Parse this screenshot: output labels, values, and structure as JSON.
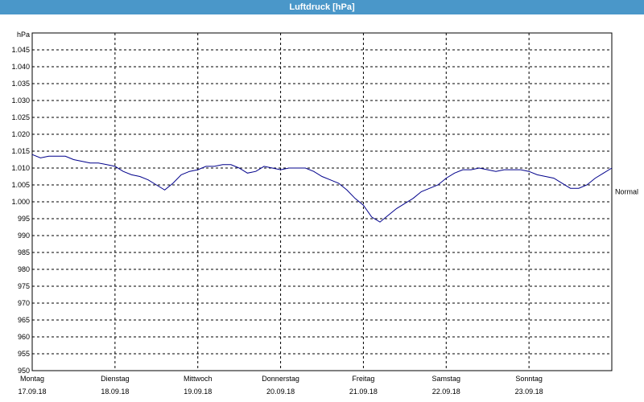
{
  "window": {
    "title": "Luftdruck [hPa]"
  },
  "chart_data": {
    "type": "line",
    "title": "Luftdruck [hPa]",
    "ylabel": "hPa",
    "xlabel": "",
    "ylim": [
      950,
      1050
    ],
    "y_ticks": [
      "950",
      "955",
      "960",
      "965",
      "970",
      "975",
      "980",
      "985",
      "990",
      "995",
      "1.000",
      "1.005",
      "1.010",
      "1.015",
      "1.020",
      "1.025",
      "1.030",
      "1.035",
      "1.040",
      "1.045"
    ],
    "x_ticks": [
      {
        "day": "Montag",
        "date": "17.09.18"
      },
      {
        "day": "Dienstag",
        "date": "18.09.18"
      },
      {
        "day": "Mittwoch",
        "date": "19.09.18"
      },
      {
        "day": "Donnerstag",
        "date": "20.09.18"
      },
      {
        "day": "Freitag",
        "date": "21.09.18"
      },
      {
        "day": "Samstag",
        "date": "22.09.18"
      },
      {
        "day": "Sonntag",
        "date": "23.09.18"
      }
    ],
    "xlim_days": [
      0,
      7
    ],
    "grid": true,
    "reference_line": {
      "label": "Normal",
      "value": 1003
    },
    "line_color": "#00008b",
    "series": [
      {
        "x": [
          0,
          0.1,
          0.2,
          0.3,
          0.4,
          0.5,
          0.6,
          0.7,
          0.8,
          0.9,
          1.0,
          1.1,
          1.2,
          1.3,
          1.4,
          1.5,
          1.6,
          1.7,
          1.8,
          1.9,
          2.0,
          2.1,
          2.2,
          2.3,
          2.4,
          2.5,
          2.6,
          2.7,
          2.8,
          2.9,
          3.0,
          3.1,
          3.2,
          3.3,
          3.4,
          3.5,
          3.6,
          3.7,
          3.8,
          3.9,
          4.0,
          4.1,
          4.2,
          4.3,
          4.4,
          4.5,
          4.6,
          4.7,
          4.8,
          4.9,
          5.0,
          5.1,
          5.2,
          5.3,
          5.4,
          5.5,
          5.6,
          5.7,
          5.8,
          5.9,
          6.0,
          6.1,
          6.2,
          6.3,
          6.4,
          6.5,
          6.6,
          6.7,
          6.8,
          6.9,
          7.0
        ],
        "y": [
          1014,
          1013,
          1013.5,
          1013.5,
          1013.5,
          1012.5,
          1012,
          1011.5,
          1011.5,
          1011,
          1010.5,
          1009,
          1008,
          1007.5,
          1006.5,
          1005,
          1003.5,
          1005.5,
          1008,
          1009,
          1009.5,
          1010.5,
          1010.5,
          1011,
          1011,
          1010,
          1008.5,
          1009,
          1010.5,
          1010,
          1009.5,
          1010,
          1010,
          1010,
          1009,
          1007.5,
          1006.5,
          1005.5,
          1003.5,
          1001,
          999,
          995.5,
          994,
          996,
          998,
          999.5,
          1001,
          1003,
          1004,
          1005,
          1007,
          1008.5,
          1009.5,
          1009.5,
          1010,
          1009.5,
          1009,
          1009.5,
          1009.5,
          1009.5,
          1009,
          1008,
          1007.5,
          1007,
          1005.5,
          1004,
          1004,
          1005,
          1007,
          1008.5,
          1010
        ]
      }
    ]
  }
}
